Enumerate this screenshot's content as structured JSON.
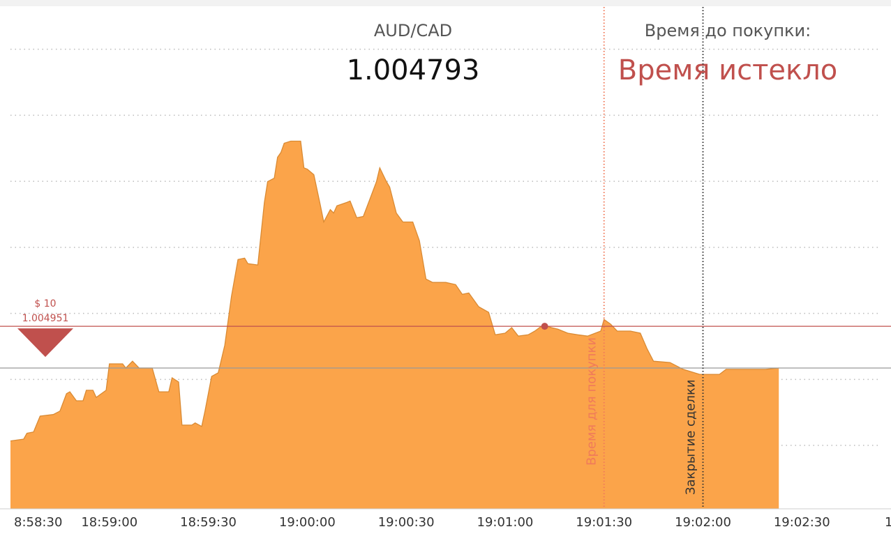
{
  "chart_data": {
    "type": "area",
    "title": "AUD/CAD",
    "price": 1.004793,
    "timer_label": "Время до покупки:",
    "timer_text": "Время истекло",
    "color": "#fba44a",
    "line_color": "#d98a33",
    "grid": true,
    "xlim": [
      "18:58:30",
      "19:02:53"
    ],
    "ylim": [
      1.00426,
      1.00616
    ],
    "yticks": [
      1.0045,
      1.00475,
      1.005,
      1.00525,
      1.0055,
      1.00575,
      1.006
    ],
    "xticks": [
      {
        "value": "18:58:30",
        "label": "8:58:30"
      },
      "18:59:00",
      "18:59:30",
      "19:00:00",
      "19:00:30",
      "19:01:00",
      "19:01:30",
      "19:02:00",
      "19:02:30",
      {
        "value": "19:03:00",
        "label": "1"
      }
    ],
    "entry": {
      "amount_label": "$ 10",
      "price": 1.004951,
      "time": "19:01:12",
      "color": "#c0504d"
    },
    "purchase_deadline": {
      "label": "Время для покупки",
      "time": "19:01:30",
      "color": "#f07a5a"
    },
    "deal_close": {
      "label": "Закрытие сделки",
      "time": "19:02:00",
      "color": "#333333"
    },
    "x": [
      "18:58:30",
      "18:58:34",
      "18:58:35",
      "18:58:37",
      "18:58:39",
      "18:58:43",
      "18:58:45",
      "18:58:47",
      "18:58:48",
      "18:58:50",
      "18:58:52",
      "18:58:53",
      "18:58:55",
      "18:58:56",
      "18:58:59",
      "18:59:00",
      "18:59:04",
      "18:59:05",
      "18:59:07",
      "18:59:09",
      "18:59:13",
      "18:59:15",
      "18:59:18",
      "18:59:19",
      "18:59:21",
      "18:59:22",
      "18:59:25",
      "18:59:26",
      "18:59:28",
      "18:59:29",
      "18:59:31",
      "18:59:33",
      "18:59:35",
      "18:59:37",
      "18:59:39",
      "18:59:41",
      "18:59:42",
      "18:59:45",
      "18:59:47",
      "18:59:48",
      "18:59:50",
      "18:59:51",
      "18:59:52",
      "18:59:53",
      "18:59:55",
      "18:59:58",
      "18:59:59",
      "19:00:00",
      "19:00:02",
      "19:00:04",
      "19:00:05",
      "19:00:07",
      "19:00:08",
      "19:00:09",
      "19:00:12",
      "19:00:13",
      "19:00:15",
      "19:00:17",
      "19:00:19",
      "19:00:21",
      "19:00:22",
      "19:00:24",
      "19:00:25",
      "19:00:27",
      "19:00:29",
      "19:00:32",
      "19:00:34",
      "19:00:36",
      "19:00:38",
      "19:00:42",
      "19:00:45",
      "19:00:47",
      "19:00:49",
      "19:00:52",
      "19:00:55",
      "19:00:57",
      "19:01:00",
      "19:01:02",
      "19:01:04",
      "19:01:07",
      "19:01:09",
      "19:01:11",
      "19:01:12",
      "19:01:14",
      "19:01:16",
      "19:01:19",
      "19:01:22",
      "19:01:25",
      "19:01:29",
      "19:01:30",
      "19:01:32",
      "19:01:34",
      "19:01:38",
      "19:01:41",
      "19:01:43",
      "19:01:45",
      "19:01:50",
      "19:01:54",
      "19:01:59",
      "19:02:05",
      "19:02:07",
      "19:02:19",
      "19:02:23"
    ],
    "values": [
      1.004517,
      1.004524,
      1.004546,
      1.004551,
      1.004611,
      1.004617,
      1.00463,
      1.004696,
      1.004703,
      1.004669,
      1.004669,
      1.004709,
      1.004709,
      1.004682,
      1.004709,
      1.004809,
      1.004809,
      1.004793,
      1.004819,
      1.004793,
      1.004793,
      1.004703,
      1.004703,
      1.004756,
      1.00474,
      1.004577,
      1.004577,
      1.004585,
      1.004572,
      1.00463,
      1.004761,
      1.004775,
      1.00488,
      1.005064,
      1.005204,
      1.005209,
      1.005188,
      1.005183,
      1.00542,
      1.005499,
      1.005512,
      1.005591,
      1.005609,
      1.005644,
      1.005652,
      1.005652,
      1.005551,
      1.005546,
      1.005525,
      1.005407,
      1.005346,
      1.005393,
      1.00538,
      1.005407,
      1.00542,
      1.005425,
      1.005362,
      1.005367,
      1.005433,
      1.005499,
      1.005551,
      1.005499,
      1.005478,
      1.00538,
      1.005346,
      1.005346,
      1.005275,
      1.00513,
      1.005117,
      1.005117,
      1.005109,
      1.005072,
      1.005077,
      1.005025,
      1.005004,
      1.004919,
      1.004925,
      1.004946,
      1.004914,
      1.004919,
      1.004933,
      1.004951,
      1.004954,
      1.004946,
      1.00494,
      1.004925,
      1.004919,
      1.004914,
      1.004933,
      1.004977,
      1.004959,
      1.004933,
      1.004933,
      1.004925,
      1.004867,
      1.004819,
      1.004814,
      1.004788,
      1.004769,
      1.004769,
      1.004788,
      1.004788,
      1.004793
    ]
  }
}
